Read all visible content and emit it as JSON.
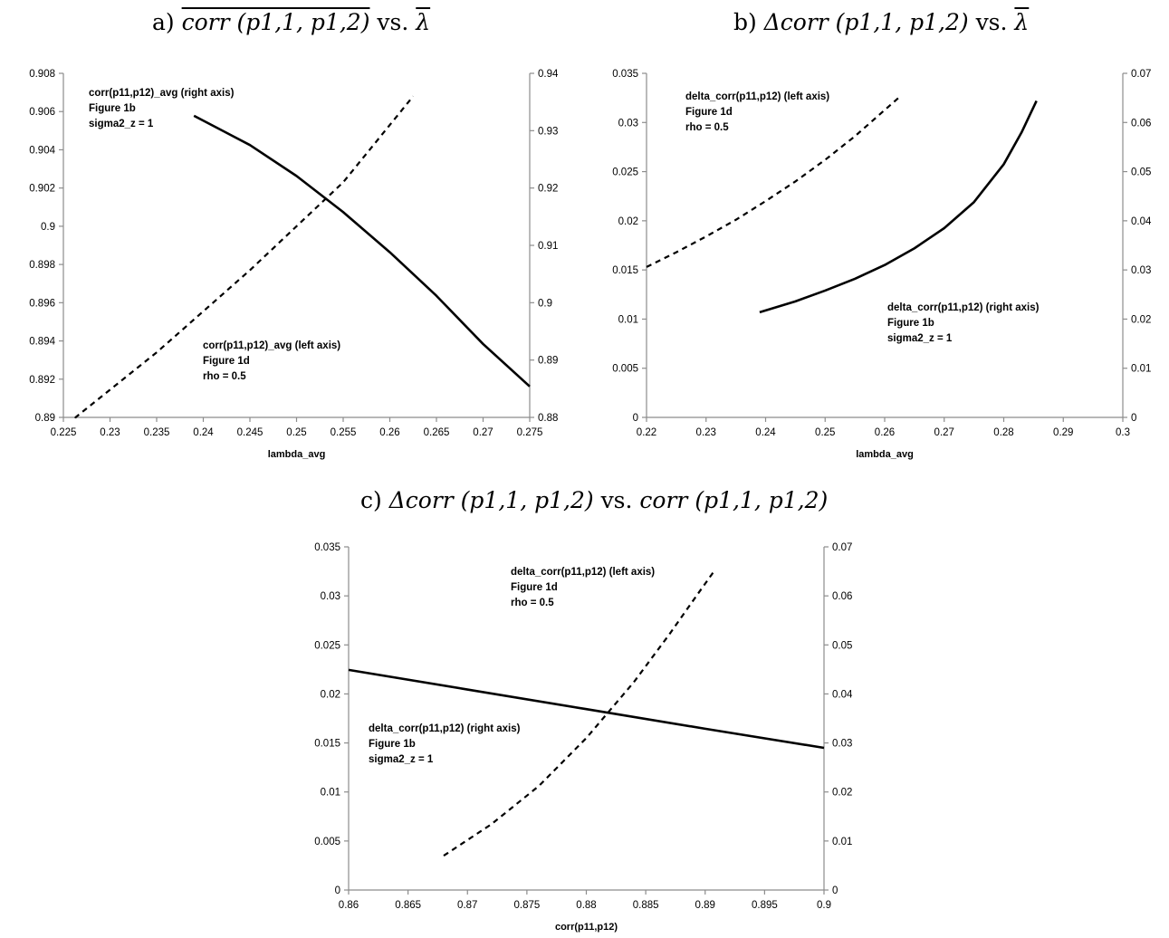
{
  "titles": {
    "a_prefix": "a)",
    "a_main": "corr (p1,1, p1,2)",
    "a_vs": "vs.",
    "a_lambda": "λ",
    "b_prefix": "b)",
    "b_main": "Δcorr (p1,1, p1,2)",
    "b_vs": "vs.",
    "b_lambda": "λ",
    "c_prefix": "c)",
    "c_main": "Δcorr (p1,1, p1,2)",
    "c_vs": "vs.",
    "c_right": "corr (p1,1, p1,2)"
  },
  "chart_data": [
    {
      "type": "line",
      "panel": "a",
      "xlabel": "lambda_avg",
      "xlim": [
        0.225,
        0.275
      ],
      "xticks": [
        "0.225",
        "0.23",
        "0.235",
        "0.24",
        "0.245",
        "0.25",
        "0.255",
        "0.26",
        "0.265",
        "0.27",
        "0.275"
      ],
      "ylim_left": [
        0.89,
        0.908
      ],
      "yticks_left": [
        "0.89",
        "0.892",
        "0.894",
        "0.896",
        "0.898",
        "0.9",
        "0.902",
        "0.904",
        "0.906",
        "0.908"
      ],
      "ylim_right": [
        0.88,
        0.94
      ],
      "yticks_right": [
        "0.88",
        "0.89",
        "0.9",
        "0.91",
        "0.92",
        "0.93",
        "0.94"
      ],
      "series": [
        {
          "axis": "right",
          "style": "solid",
          "x": [
            0.239,
            0.245,
            0.25,
            0.255,
            0.26,
            0.265,
            0.27,
            0.275
          ],
          "y": [
            0.9326,
            0.9275,
            0.9221,
            0.9158,
            0.9088,
            0.9012,
            0.8928,
            0.8854
          ]
        },
        {
          "axis": "left",
          "style": "dashed",
          "x": [
            0.2264,
            0.2263,
            0.235,
            0.245,
            0.255,
            0.2625
          ],
          "y": [
            0.89,
            0.89,
            0.8934,
            0.8977,
            0.9023,
            0.9068
          ]
        }
      ],
      "annotations": [
        {
          "lines": [
            "corr(p11,p12)_avg (right axis)",
            "Figure 1b",
            "sigma2_z = 1"
          ]
        },
        {
          "lines": [
            "corr(p11,p12)_avg (left axis)",
            "Figure 1d",
            "rho = 0.5"
          ]
        }
      ]
    },
    {
      "type": "line",
      "panel": "b",
      "xlabel": "lambda_avg",
      "xlim": [
        0.22,
        0.3
      ],
      "xticks": [
        "0.22",
        "0.23",
        "0.24",
        "0.25",
        "0.26",
        "0.27",
        "0.28",
        "0.29",
        "0.3"
      ],
      "ylim_left": [
        0,
        0.035
      ],
      "yticks_left": [
        "0",
        "0.005",
        "0.01",
        "0.015",
        "0.02",
        "0.025",
        "0.03",
        "0.035"
      ],
      "ylim_right": [
        0,
        0.07
      ],
      "yticks_right": [
        "0",
        "0.01",
        "0.02",
        "0.03",
        "0.04",
        "0.05",
        "0.06",
        "0.07"
      ],
      "series": [
        {
          "axis": "left",
          "style": "dashed",
          "x": [
            0.22,
            0.225,
            0.23,
            0.235,
            0.24,
            0.245,
            0.25,
            0.255,
            0.2625
          ],
          "y": [
            0.0153,
            0.0168,
            0.0184,
            0.0201,
            0.022,
            0.024,
            0.0262,
            0.0286,
            0.0326
          ]
        },
        {
          "axis": "right",
          "style": "solid",
          "x": [
            0.239,
            0.245,
            0.25,
            0.255,
            0.26,
            0.265,
            0.27,
            0.275,
            0.28,
            0.283,
            0.2855
          ],
          "y": [
            0.0214,
            0.0236,
            0.0258,
            0.0282,
            0.031,
            0.0344,
            0.0385,
            0.0438,
            0.0515,
            0.058,
            0.0644
          ]
        }
      ],
      "annotations": [
        {
          "lines": [
            "delta_corr(p11,p12) (left axis)",
            "Figure 1d",
            "rho = 0.5"
          ]
        },
        {
          "lines": [
            "delta_corr(p11,p12) (right axis)",
            "Figure 1b",
            "sigma2_z = 1"
          ]
        }
      ]
    },
    {
      "type": "line",
      "panel": "c",
      "xlabel": "corr(p11,p12)",
      "xlim": [
        0.86,
        0.9
      ],
      "xticks": [
        "0.86",
        "0.865",
        "0.87",
        "0.875",
        "0.88",
        "0.885",
        "0.89",
        "0.895",
        "0.9"
      ],
      "ylim_left": [
        0,
        0.035
      ],
      "yticks_left": [
        "0",
        "0.005",
        "0.01",
        "0.015",
        "0.02",
        "0.025",
        "0.03",
        "0.035"
      ],
      "ylim_right": [
        0,
        0.07
      ],
      "yticks_right": [
        "0",
        "0.01",
        "0.02",
        "0.03",
        "0.04",
        "0.05",
        "0.06",
        "0.07"
      ],
      "series": [
        {
          "axis": "right",
          "style": "solid",
          "x": [
            0.86,
            0.87,
            0.88,
            0.89,
            0.9
          ],
          "y": [
            0.0449,
            0.0409,
            0.0369,
            0.0329,
            0.029
          ]
        },
        {
          "axis": "left",
          "style": "dashed",
          "x": [
            0.868,
            0.872,
            0.876,
            0.88,
            0.884,
            0.887,
            0.8895,
            0.8908
          ],
          "y": [
            0.0035,
            0.0067,
            0.0106,
            0.0155,
            0.0212,
            0.0261,
            0.0304,
            0.0326
          ]
        }
      ],
      "annotations": [
        {
          "lines": [
            "delta_corr(p11,p12) (left axis)",
            "Figure 1d",
            "rho = 0.5"
          ]
        },
        {
          "lines": [
            "delta_corr(p11,p12) (right axis)",
            "Figure 1b",
            "sigma2_z = 1"
          ]
        }
      ]
    }
  ]
}
